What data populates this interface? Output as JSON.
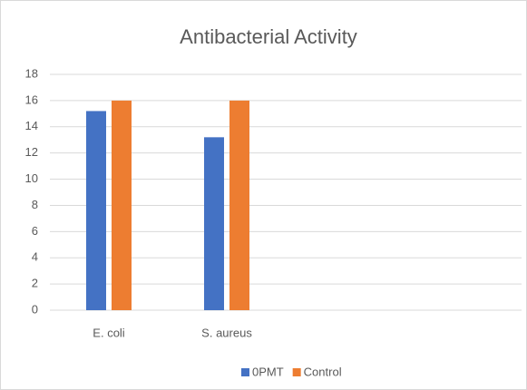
{
  "chart_data": {
    "type": "bar",
    "title": "Antibacterial Activity",
    "categories": [
      "E. coli",
      "S. aureus",
      null,
      null
    ],
    "series": [
      {
        "name": "0PMT",
        "color": "#4472c4",
        "values": [
          15.2,
          13.2,
          null,
          null
        ]
      },
      {
        "name": "Control",
        "color": "#ed7d31",
        "values": [
          16,
          16,
          null,
          null
        ]
      }
    ],
    "ylim": [
      0,
      18
    ],
    "yticks": [
      0,
      2,
      4,
      6,
      8,
      10,
      12,
      14,
      16,
      18
    ],
    "grid": true,
    "legend": "bottom"
  }
}
